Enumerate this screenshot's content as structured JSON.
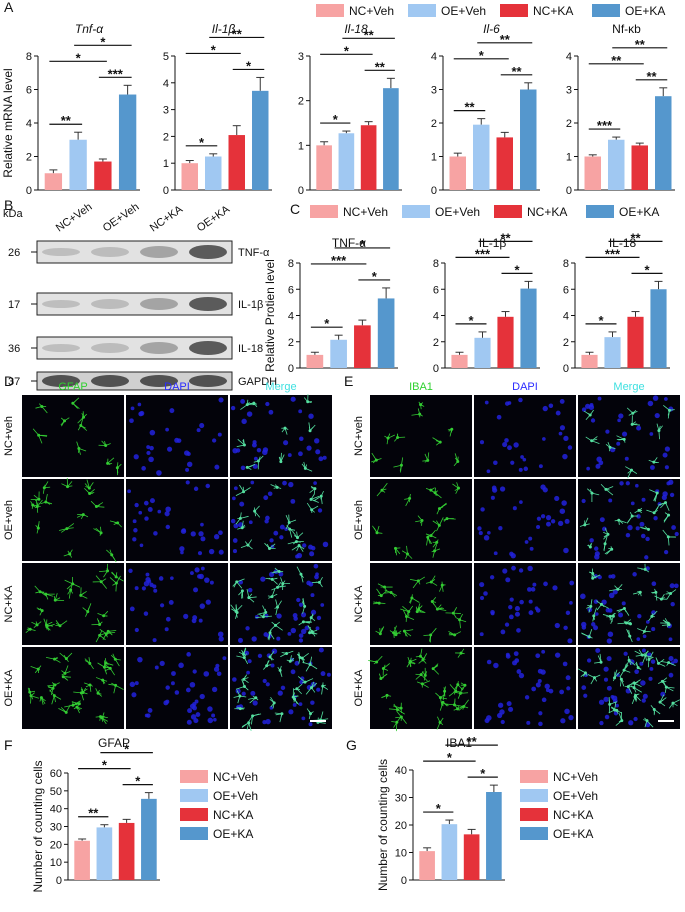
{
  "panel_labels": [
    "A",
    "B",
    "C",
    "D",
    "E",
    "F",
    "G"
  ],
  "legends": [
    {
      "names": [
        "NC+Veh",
        "OE+Veh",
        "NC+KA",
        "OE+KA"
      ],
      "colors": [
        "#f7a3a3",
        "#a0c8f2",
        "#e5323a",
        "#5597cd"
      ],
      "orientation": "horizontal"
    },
    {
      "names": [
        "NC+Veh",
        "OE+Veh",
        "NC+KA",
        "OE+KA"
      ],
      "colors": [
        "#f7a3a3",
        "#a0c8f2",
        "#e5323a",
        "#5597cd"
      ],
      "orientation": "horizontal"
    },
    {
      "names": [
        "NC+Veh",
        "OE+Veh",
        "NC+KA",
        "OE+KA"
      ],
      "colors": [
        "#f7a3a3",
        "#a0c8f2",
        "#e5323a",
        "#5597cd"
      ],
      "orientation": "vertical"
    },
    {
      "names": [
        "NC+Veh",
        "OE+Veh",
        "NC+KA",
        "OE+KA"
      ],
      "colors": [
        "#f7a3a3",
        "#a0c8f2",
        "#e5323a",
        "#5597cd"
      ],
      "orientation": "vertical"
    }
  ],
  "chart_data": [
    {
      "type": "bar",
      "title": "Tnf-α",
      "title_italic": true,
      "ylabel": "Relative mRNA level",
      "categories": [
        null,
        null,
        null,
        null
      ],
      "values": [
        1.0,
        3.0,
        1.7,
        5.7
      ],
      "errors": [
        0.2,
        0.45,
        0.15,
        0.55
      ],
      "colors": [
        "#f7a3a3",
        "#a0c8f2",
        "#e5323a",
        "#5597cd"
      ],
      "ylim": [
        0,
        8
      ],
      "yticks": [
        0,
        2,
        4,
        6,
        8
      ],
      "significance": [
        {
          "pair": [
            0,
            1
          ],
          "label": "**"
        },
        {
          "pair": [
            2,
            3
          ],
          "label": "***"
        },
        {
          "pair": [
            0,
            2
          ],
          "label": "*"
        },
        {
          "pair": [
            1,
            3
          ],
          "label": "*"
        }
      ]
    },
    {
      "type": "bar",
      "title": "Il-1β",
      "title_italic": true,
      "categories": [
        null,
        null,
        null,
        null
      ],
      "values": [
        1.0,
        1.25,
        2.05,
        3.7
      ],
      "errors": [
        0.1,
        0.1,
        0.35,
        0.5
      ],
      "colors": [
        "#f7a3a3",
        "#a0c8f2",
        "#e5323a",
        "#5597cd"
      ],
      "ylim": [
        0,
        5
      ],
      "yticks": [
        0,
        1,
        2,
        3,
        4,
        5
      ],
      "significance": [
        {
          "pair": [
            0,
            1
          ],
          "label": "*"
        },
        {
          "pair": [
            2,
            3
          ],
          "label": "*"
        },
        {
          "pair": [
            0,
            2
          ],
          "label": "*"
        },
        {
          "pair": [
            1,
            3
          ],
          "label": "**"
        }
      ]
    },
    {
      "type": "bar",
      "title": "Il-18",
      "title_italic": true,
      "categories": [
        null,
        null,
        null,
        null
      ],
      "values": [
        1.0,
        1.27,
        1.45,
        2.28
      ],
      "errors": [
        0.08,
        0.05,
        0.08,
        0.22
      ],
      "colors": [
        "#f7a3a3",
        "#a0c8f2",
        "#e5323a",
        "#5597cd"
      ],
      "ylim": [
        0,
        3
      ],
      "yticks": [
        0,
        1,
        2,
        3
      ],
      "significance": [
        {
          "pair": [
            0,
            1
          ],
          "label": "*"
        },
        {
          "pair": [
            2,
            3
          ],
          "label": "**"
        },
        {
          "pair": [
            0,
            2
          ],
          "label": "*"
        },
        {
          "pair": [
            1,
            3
          ],
          "label": "**"
        }
      ]
    },
    {
      "type": "bar",
      "title": "Il-6",
      "title_italic": true,
      "categories": [
        null,
        null,
        null,
        null
      ],
      "values": [
        1.0,
        1.95,
        1.57,
        3.0
      ],
      "errors": [
        0.1,
        0.18,
        0.15,
        0.2
      ],
      "colors": [
        "#f7a3a3",
        "#a0c8f2",
        "#e5323a",
        "#5597cd"
      ],
      "ylim": [
        0,
        4
      ],
      "yticks": [
        0,
        1,
        2,
        3,
        4
      ],
      "significance": [
        {
          "pair": [
            0,
            1
          ],
          "label": "**"
        },
        {
          "pair": [
            2,
            3
          ],
          "label": "**"
        },
        {
          "pair": [
            0,
            2
          ],
          "label": "*"
        },
        {
          "pair": [
            1,
            3
          ],
          "label": "**"
        }
      ]
    },
    {
      "type": "bar",
      "title": "Nf-κb",
      "title_italic": false,
      "categories": [
        null,
        null,
        null,
        null
      ],
      "values": [
        1.0,
        1.5,
        1.33,
        2.8
      ],
      "errors": [
        0.05,
        0.08,
        0.07,
        0.25
      ],
      "colors": [
        "#f7a3a3",
        "#a0c8f2",
        "#e5323a",
        "#5597cd"
      ],
      "ylim": [
        0,
        4
      ],
      "yticks": [
        0,
        1,
        2,
        3,
        4
      ],
      "significance": [
        {
          "pair": [
            0,
            1
          ],
          "label": "***"
        },
        {
          "pair": [
            2,
            3
          ],
          "label": "**"
        },
        {
          "pair": [
            0,
            2
          ],
          "label": "**"
        },
        {
          "pair": [
            1,
            3
          ],
          "label": "**"
        }
      ]
    },
    {
      "type": "bar",
      "title": "TNF-α",
      "ylabel": "Relative Protien level",
      "categories": [
        null,
        null,
        null,
        null
      ],
      "values": [
        1.0,
        2.15,
        3.25,
        5.3
      ],
      "errors": [
        0.2,
        0.35,
        0.4,
        0.8
      ],
      "colors": [
        "#f7a3a3",
        "#a0c8f2",
        "#e5323a",
        "#5597cd"
      ],
      "ylim": [
        0,
        8
      ],
      "yticks": [
        0,
        2,
        4,
        6,
        8
      ],
      "significance": [
        {
          "pair": [
            0,
            1
          ],
          "label": "*"
        },
        {
          "pair": [
            2,
            3
          ],
          "label": "*"
        },
        {
          "pair": [
            0,
            2
          ],
          "label": "***"
        },
        {
          "pair": [
            1,
            3
          ],
          "label": "*"
        }
      ]
    },
    {
      "type": "bar",
      "title": "IL-1β",
      "categories": [
        null,
        null,
        null,
        null
      ],
      "values": [
        1.0,
        2.3,
        3.9,
        6.05
      ],
      "errors": [
        0.2,
        0.45,
        0.4,
        0.55
      ],
      "colors": [
        "#f7a3a3",
        "#a0c8f2",
        "#e5323a",
        "#5597cd"
      ],
      "ylim": [
        0,
        8
      ],
      "yticks": [
        0,
        2,
        4,
        6,
        8
      ],
      "significance": [
        {
          "pair": [
            0,
            1
          ],
          "label": "*"
        },
        {
          "pair": [
            2,
            3
          ],
          "label": "*"
        },
        {
          "pair": [
            0,
            2
          ],
          "label": "***"
        },
        {
          "pair": [
            1,
            3
          ],
          "label": "**"
        }
      ]
    },
    {
      "type": "bar",
      "title": "IL-18",
      "categories": [
        null,
        null,
        null,
        null
      ],
      "values": [
        1.0,
        2.35,
        3.9,
        6.0
      ],
      "errors": [
        0.2,
        0.4,
        0.4,
        0.6
      ],
      "colors": [
        "#f7a3a3",
        "#a0c8f2",
        "#e5323a",
        "#5597cd"
      ],
      "ylim": [
        0,
        8
      ],
      "yticks": [
        0,
        2,
        4,
        6,
        8
      ],
      "significance": [
        {
          "pair": [
            0,
            1
          ],
          "label": "*"
        },
        {
          "pair": [
            2,
            3
          ],
          "label": "*"
        },
        {
          "pair": [
            0,
            2
          ],
          "label": "***"
        },
        {
          "pair": [
            1,
            3
          ],
          "label": "**"
        }
      ]
    },
    {
      "type": "bar",
      "title": "GFAP",
      "ylabel": "Number of counting cells",
      "categories": [
        null,
        null,
        null,
        null
      ],
      "values": [
        22,
        29.5,
        32,
        45.5
      ],
      "errors": [
        1,
        1.5,
        2,
        3.5
      ],
      "colors": [
        "#f7a3a3",
        "#a0c8f2",
        "#e5323a",
        "#5597cd"
      ],
      "ylim": [
        0,
        60
      ],
      "yticks": [
        0,
        10,
        20,
        30,
        40,
        50,
        60
      ],
      "significance": [
        {
          "pair": [
            0,
            1
          ],
          "label": "**"
        },
        {
          "pair": [
            2,
            3
          ],
          "label": "*"
        },
        {
          "pair": [
            0,
            2
          ],
          "label": "*"
        },
        {
          "pair": [
            1,
            3
          ],
          "label": "*"
        }
      ]
    },
    {
      "type": "bar",
      "title": "IBA1",
      "ylabel": "Number of counting cells",
      "categories": [
        null,
        null,
        null,
        null
      ],
      "values": [
        10.5,
        20.3,
        16.6,
        32
      ],
      "errors": [
        1.2,
        1.5,
        1.8,
        2.5
      ],
      "colors": [
        "#f7a3a3",
        "#a0c8f2",
        "#e5323a",
        "#5597cd"
      ],
      "ylim": [
        0,
        40
      ],
      "yticks": [
        0,
        10,
        20,
        30,
        40
      ],
      "significance": [
        {
          "pair": [
            0,
            1
          ],
          "label": "*"
        },
        {
          "pair": [
            2,
            3
          ],
          "label": "*"
        },
        {
          "pair": [
            0,
            2
          ],
          "label": "*"
        },
        {
          "pair": [
            1,
            3
          ],
          "label": "**"
        }
      ]
    }
  ],
  "blot": {
    "unit": "kDa",
    "lanes": [
      "NC+Veh",
      "OE+Veh",
      "NC+KA",
      "OE+KA"
    ],
    "bands": [
      {
        "name": "TNF-α",
        "weight": 26
      },
      {
        "name": "IL-1β",
        "weight": 17
      },
      {
        "name": "IL-18",
        "weight": 36
      },
      {
        "name": "GAPDH",
        "weight": 37
      }
    ]
  },
  "micrographs": [
    {
      "columns": [
        "GFAP",
        "DAPI",
        "Merge"
      ],
      "column_colors": [
        "#2fd12f",
        "#2b2bff",
        "#3fe0e0"
      ],
      "rows": [
        "NC+veh",
        "OE+veh",
        "NC+KA",
        "OE+KA"
      ]
    },
    {
      "columns": [
        "IBA1",
        "DAPI",
        "Merge"
      ],
      "column_colors": [
        "#2fd12f",
        "#2b2bff",
        "#3fe0e0"
      ],
      "rows": [
        "NC+veh",
        "OE+veh",
        "NC+KA",
        "OE+KA"
      ]
    }
  ]
}
